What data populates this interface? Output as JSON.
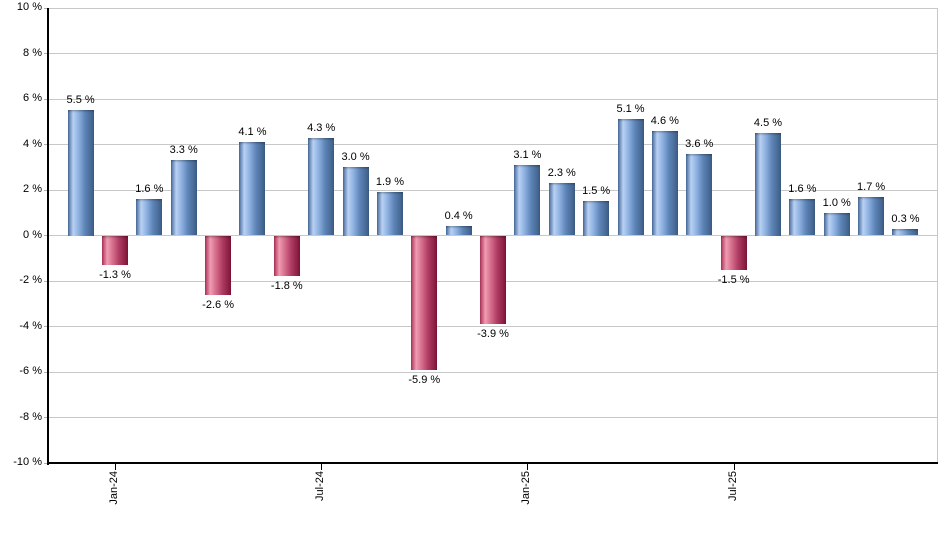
{
  "chart_data": {
    "type": "bar",
    "unit": "%",
    "ylim": [
      -10,
      10
    ],
    "grid": "horizontal",
    "legend": "none",
    "values": [
      5.5,
      -1.3,
      1.6,
      3.3,
      -2.6,
      4.1,
      -1.8,
      4.3,
      3.0,
      1.9,
      -5.9,
      0.4,
      -3.9,
      3.1,
      2.3,
      1.5,
      5.1,
      4.6,
      3.6,
      -1.5,
      4.5,
      1.6,
      1.0,
      1.7,
      0.3
    ],
    "bar_labels": [
      "5.5 %",
      "-1.3 %",
      "1.6 %",
      "3.3 %",
      "-2.6 %",
      "4.1 %",
      "-1.8 %",
      "4.3 %",
      "3.0 %",
      "1.9 %",
      "-5.9 %",
      "0.4 %",
      "-3.9 %",
      "3.1 %",
      "2.3 %",
      "1.5 %",
      "5.1 %",
      "4.6 %",
      "3.6 %",
      "-1.5 %",
      "4.5 %",
      "1.6 %",
      "1.0 %",
      "1.7 %",
      "0.3 %"
    ],
    "x_ticks": [
      {
        "bar_index": 1,
        "label": "Jan-24"
      },
      {
        "bar_index": 7,
        "label": "Jul-24"
      },
      {
        "bar_index": 13,
        "label": "Jan-25"
      },
      {
        "bar_index": 19,
        "label": "Jul-25"
      }
    ],
    "y_ticks": [
      {
        "value": 10,
        "label": "10 %"
      },
      {
        "value": 8,
        "label": "8 %"
      },
      {
        "value": 6,
        "label": "6 %"
      },
      {
        "value": 4,
        "label": "4 %"
      },
      {
        "value": 2,
        "label": "2 %"
      },
      {
        "value": 0,
        "label": "0 %"
      },
      {
        "value": -2,
        "label": "-2 %"
      },
      {
        "value": -4,
        "label": "-4 %"
      },
      {
        "value": -6,
        "label": "-6 %"
      },
      {
        "value": -8,
        "label": "-8 %"
      },
      {
        "value": -10,
        "label": "-10 %"
      }
    ],
    "colors": {
      "positive_base": "#6f99cf",
      "negative_base": "#c2446a",
      "positive_gradient": [
        "#46699c",
        "#b9d1f2",
        "#8fb2e2",
        "#5e85b8",
        "#3c5c85"
      ],
      "negative_gradient": [
        "#aa2f55",
        "#f09cb2",
        "#d8718f",
        "#b13e64",
        "#7d1336"
      ],
      "gridline": "#c8c8c8",
      "axis": "#000000",
      "label_text": "#000000"
    }
  }
}
